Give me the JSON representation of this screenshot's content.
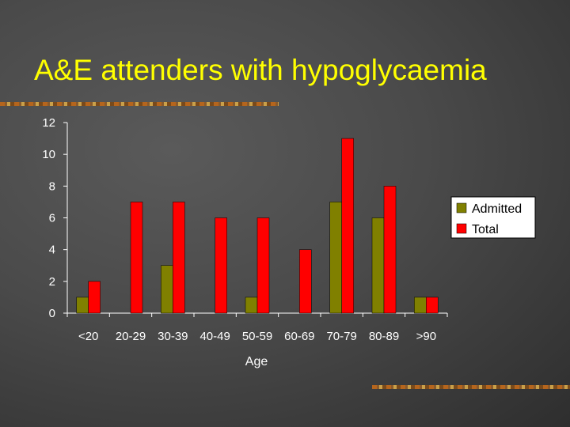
{
  "slide": {
    "title": "A&E attenders with hypoglycaemia"
  },
  "chart_data": {
    "type": "bar",
    "title": "",
    "xlabel": "Age",
    "ylabel": "",
    "categories": [
      "<20",
      "20-29",
      "30-39",
      "40-49",
      "50-59",
      "60-69",
      "70-79",
      "80-89",
      ">90"
    ],
    "series": [
      {
        "name": "Admitted",
        "values": [
          1,
          0,
          3,
          0,
          1,
          0,
          7,
          6,
          1
        ],
        "color": "#808000"
      },
      {
        "name": "Total",
        "values": [
          2,
          7,
          7,
          6,
          6,
          4,
          11,
          8,
          1
        ],
        "color": "#ff0000"
      }
    ],
    "ylim": [
      0,
      12
    ],
    "yticks": [
      "0",
      "2",
      "4",
      "6",
      "8",
      "10",
      "12"
    ],
    "grid": false,
    "legend": "right",
    "colors": {
      "axis": "#ffffff",
      "text": "#ffffff",
      "title": "#ffff00"
    }
  }
}
